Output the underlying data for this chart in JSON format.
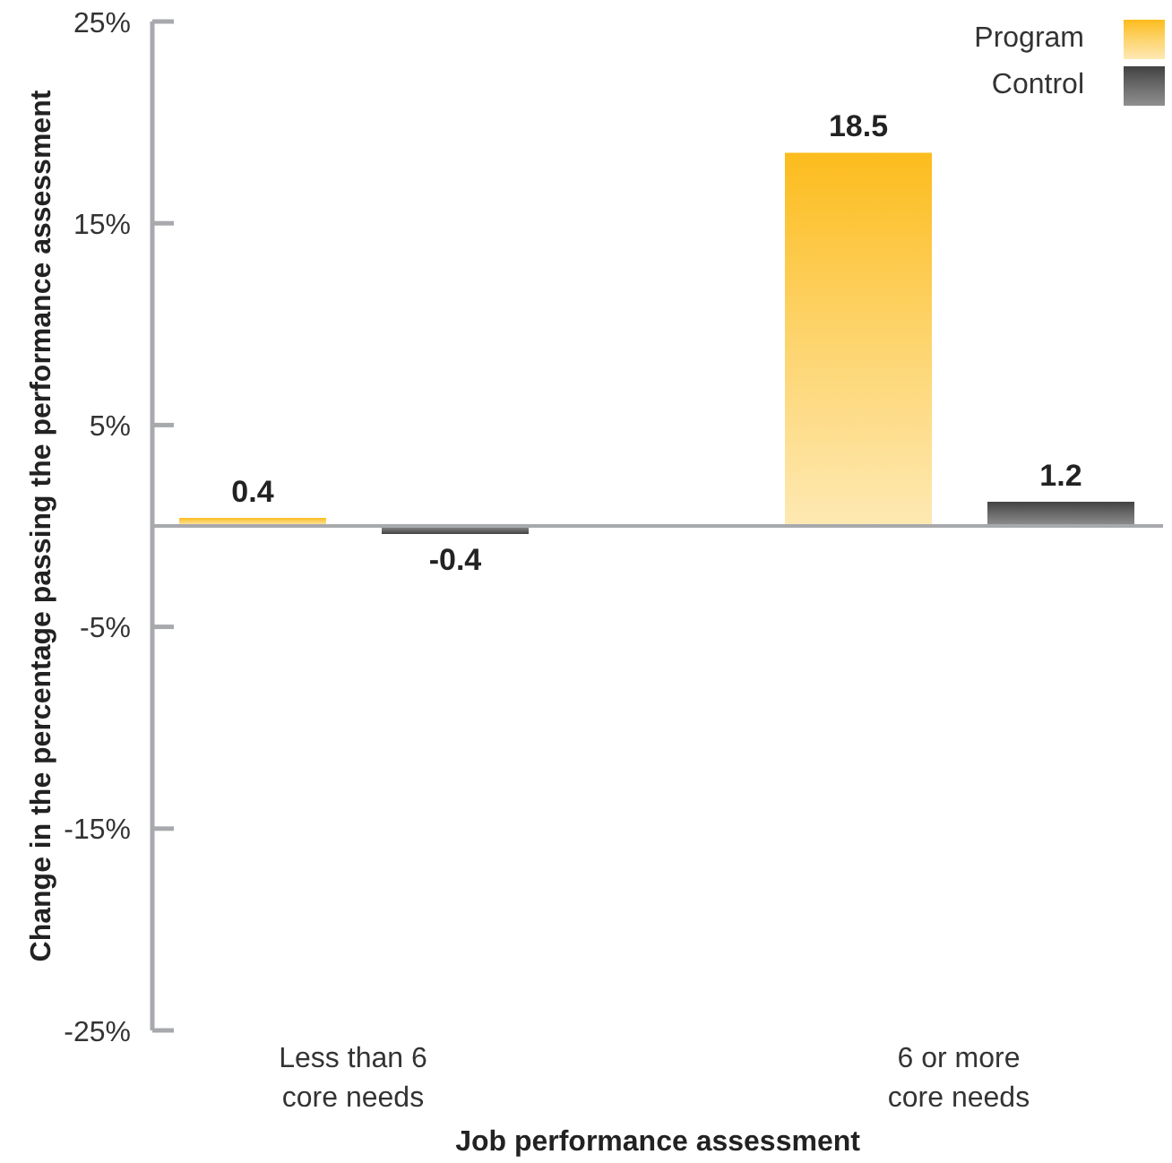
{
  "chart_data": {
    "type": "bar",
    "xlabel": "Job performance assessment",
    "ylabel": "Change in the percentage passing the performance assessment",
    "categories": [
      "Less than 6 core needs",
      "6 or more core needs"
    ],
    "series": [
      {
        "name": "Program",
        "color": "#fdd46d",
        "values": [
          0.4,
          18.5
        ]
      },
      {
        "name": "Control",
        "color": "#6b6b6b",
        "values": [
          -0.4,
          1.2
        ]
      }
    ],
    "ylim": [
      -25,
      25
    ],
    "yticks": [
      {
        "value": 25,
        "label": "25%"
      },
      {
        "value": 15,
        "label": "15%"
      },
      {
        "value": 5,
        "label": "5%"
      },
      {
        "value": -5,
        "label": "-5%"
      },
      {
        "value": -15,
        "label": "-15%"
      },
      {
        "value": -25,
        "label": "-25%"
      }
    ],
    "data_labels": true,
    "legend": "top right"
  }
}
